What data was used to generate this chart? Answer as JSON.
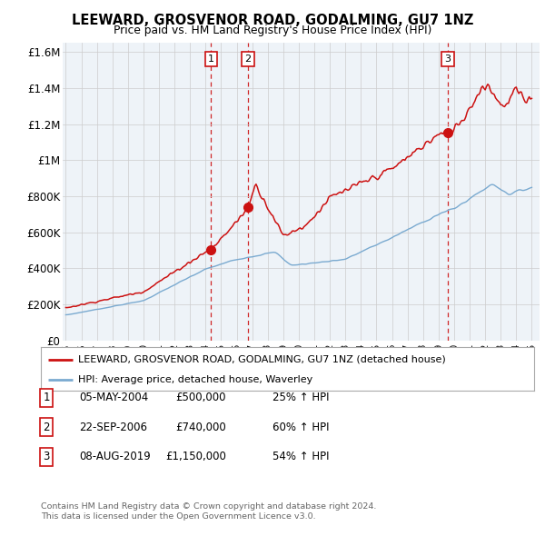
{
  "title": "LEEWARD, GROSVENOR ROAD, GODALMING, GU7 1NZ",
  "subtitle": "Price paid vs. HM Land Registry's House Price Index (HPI)",
  "legend_house": "LEEWARD, GROSVENOR ROAD, GODALMING, GU7 1NZ (detached house)",
  "legend_hpi": "HPI: Average price, detached house, Waverley",
  "footer1": "Contains HM Land Registry data © Crown copyright and database right 2024.",
  "footer2": "This data is licensed under the Open Government Licence v3.0.",
  "transactions": [
    {
      "num": 1,
      "date": "05-MAY-2004",
      "price": "£500,000",
      "pct": "25% ↑ HPI",
      "year": 2004.35,
      "price_val": 500000
    },
    {
      "num": 2,
      "date": "22-SEP-2006",
      "price": "£740,000",
      "pct": "60% ↑ HPI",
      "year": 2006.72,
      "price_val": 740000
    },
    {
      "num": 3,
      "date": "08-AUG-2019",
      "price": "£1,150,000",
      "pct": "54% ↑ HPI",
      "year": 2019.6,
      "price_val": 1150000
    }
  ],
  "house_color": "#cc1111",
  "hpi_color": "#7aaad0",
  "vline_color": "#cc1111",
  "bg_color": "#eef3f8",
  "plot_bg": "#ffffff",
  "ylim": [
    0,
    1650000
  ],
  "yticks": [
    0,
    200000,
    400000,
    600000,
    800000,
    1000000,
    1200000,
    1400000,
    1600000
  ],
  "ytick_labels": [
    "£0",
    "£200K",
    "£400K",
    "£600K",
    "£800K",
    "£1M",
    "£1.2M",
    "£1.4M",
    "£1.6M"
  ],
  "xmin": 1994.8,
  "xmax": 2025.5,
  "xtick_years": [
    1995,
    1996,
    1997,
    1998,
    1999,
    2000,
    2001,
    2002,
    2003,
    2004,
    2005,
    2006,
    2007,
    2008,
    2009,
    2010,
    2011,
    2012,
    2013,
    2014,
    2015,
    2016,
    2017,
    2018,
    2019,
    2020,
    2021,
    2022,
    2023,
    2024,
    2025
  ]
}
